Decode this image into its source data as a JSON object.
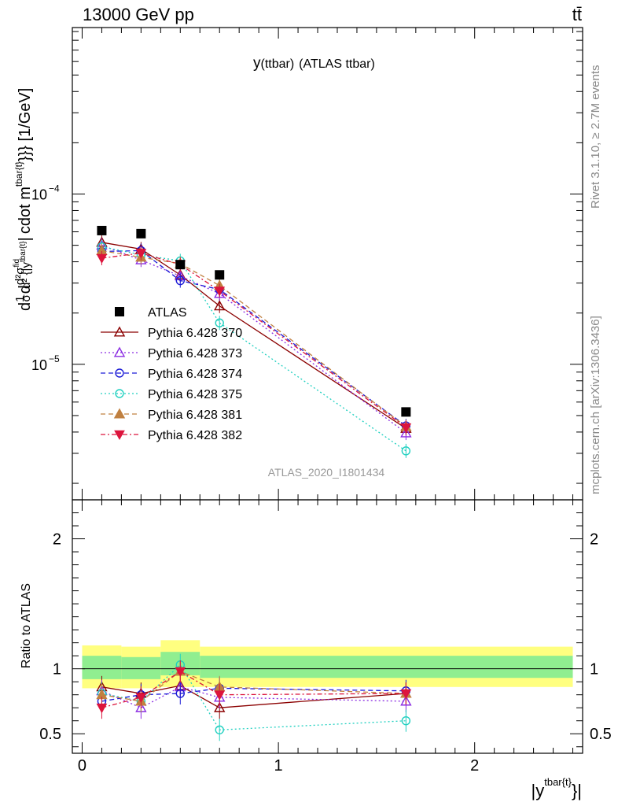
{
  "header": {
    "energy_label": "13000 GeV pp",
    "process_label": "tt̄"
  },
  "side_labels": {
    "rivet": "Rivet 3.1.10, ≥ 2.7M events",
    "mcplots": "mcplots.cern.ch [arXiv:1306.3436]"
  },
  "chart_data": [
    {
      "type": "scatter",
      "panel": "main",
      "title": "y(ttbar) (ATLAS ttbar)",
      "title_main": "y",
      "title_sub": "(ttbar)",
      "title_rest": "(ATLAS ttbar)",
      "watermark": "ATLAS_2020_I1801434",
      "ylabel": "d1/σdd²σfid/d²{|ytbar{t}|cdot mtbar{t}}}} [1/GeV]",
      "ylabel_parts": {
        "d1": "d",
        "frac1_num": "1",
        "frac1_den": "σ",
        "d2": "d",
        "frac2_num": "d²σ",
        "frac2_num_sup": "fid",
        "frac2_den": "d² {|y",
        "frac2_den_sup": "tbar{t}",
        "bar": "|",
        "rest": "cdot m",
        "rest_sup": "tbar{t}",
        "tail": "}}} [1/GeV]"
      },
      "yscale": "log",
      "ylim": [
        1.6e-06,
        0.00095
      ],
      "xlim": [
        -0.05,
        2.55
      ],
      "y_tick_labels": [
        "10⁻⁵",
        "10⁻⁴"
      ],
      "y_tick_label_parts": [
        {
          "base": "10",
          "exp": "−5"
        },
        {
          "base": "10",
          "exp": "−4"
        }
      ],
      "y_tick_values": [
        1e-05,
        0.0001
      ],
      "legend_position": "lower-left",
      "x": [
        0.1,
        0.3,
        0.5,
        0.7,
        1.65
      ],
      "series": [
        {
          "name": "ATLAS",
          "color": "#000000",
          "marker": "filled-square",
          "line": "none",
          "values": [
            6.1e-05,
            5.85e-05,
            3.85e-05,
            3.35e-05,
            5.25e-06
          ]
        },
        {
          "name": "Pythia 6.428 370",
          "color": "#8b0000",
          "marker": "open-triangle-up",
          "line": "solid",
          "values": [
            5.2e-05,
            4.75e-05,
            3.35e-05,
            2.2e-05,
            4.2e-06
          ]
        },
        {
          "name": "Pythia 6.428 373",
          "color": "#8a2be2",
          "marker": "open-triangle-up",
          "line": "dotted",
          "values": [
            5e-05,
            4.1e-05,
            3.3e-05,
            2.6e-05,
            3.95e-06
          ]
        },
        {
          "name": "Pythia 6.428 374",
          "color": "#1a1ad6",
          "marker": "open-circle",
          "line": "dashed",
          "values": [
            4.6e-05,
            4.65e-05,
            3.1e-05,
            2.75e-05,
            4.35e-06
          ]
        },
        {
          "name": "Pythia 6.428 375",
          "color": "#20d0c0",
          "marker": "open-circle",
          "line": "dotted",
          "values": [
            4.9e-05,
            4.4e-05,
            4.05e-05,
            1.75e-05,
            3.1e-06
          ]
        },
        {
          "name": "Pythia 6.428 381",
          "color": "#c08040",
          "marker": "filled-triangle-up",
          "line": "dashed",
          "values": [
            4.65e-05,
            4.25e-05,
            3.9e-05,
            2.9e-05,
            4.3e-06
          ]
        },
        {
          "name": "Pythia 6.428 382",
          "color": "#dc143c",
          "marker": "filled-triangle-down",
          "line": "dashdot",
          "values": [
            4.2e-05,
            4.5e-05,
            3.85e-05,
            2.7e-05,
            4.25e-06
          ]
        }
      ]
    },
    {
      "type": "scatter",
      "panel": "ratio",
      "ylabel": "Ratio to ATLAS",
      "xlabel": "|ytbar{t}}|",
      "xlabel_parts": {
        "bar": "|y",
        "sup": "tbar{t}",
        "tail": "}|"
      },
      "ylim": [
        0.35,
        2.3
      ],
      "xlim": [
        -0.05,
        2.55
      ],
      "x_tick_labels": [
        "0",
        "1",
        "2"
      ],
      "x_tick_values": [
        0,
        1,
        2
      ],
      "y_tick_labels": [
        "0.5",
        "1",
        "2"
      ],
      "y_tick_values": [
        0.5,
        1,
        2
      ],
      "reference_line": 1,
      "x": [
        0.1,
        0.3,
        0.5,
        0.7,
        1.65
      ],
      "bin_edges": [
        0,
        0.2,
        0.4,
        0.6,
        2.5
      ],
      "uncertainty_bands": {
        "inner_color": "#90ee90",
        "outer_color": "#ffff80",
        "inner": [
          [
            0.92,
            1.1
          ],
          [
            0.92,
            1.09
          ],
          [
            0.95,
            1.13
          ],
          [
            0.93,
            1.1
          ],
          [
            0.93,
            1.09
          ]
        ],
        "outer": [
          [
            0.85,
            1.18
          ],
          [
            0.85,
            1.17
          ],
          [
            0.86,
            1.22
          ],
          [
            0.86,
            1.17
          ],
          [
            0.85,
            1.18
          ]
        ]
      },
      "series": [
        {
          "name": "Pythia 6.428 370",
          "color": "#8b0000",
          "marker": "open-triangle-up",
          "line": "solid",
          "values": [
            0.86,
            0.81,
            0.87,
            0.7,
            0.81
          ]
        },
        {
          "name": "Pythia 6.428 373",
          "color": "#8a2be2",
          "marker": "open-triangle-up",
          "line": "dotted",
          "values": [
            0.83,
            0.7,
            0.86,
            0.78,
            0.75
          ]
        },
        {
          "name": "Pythia 6.428 374",
          "color": "#1a1ad6",
          "marker": "open-circle",
          "line": "dashed",
          "values": [
            0.75,
            0.8,
            0.81,
            0.85,
            0.83
          ]
        },
        {
          "name": "Pythia 6.428 375",
          "color": "#20d0c0",
          "marker": "open-circle",
          "line": "dotted",
          "values": [
            0.81,
            0.75,
            1.03,
            0.53,
            0.6
          ]
        },
        {
          "name": "Pythia 6.428 381",
          "color": "#c08040",
          "marker": "filled-triangle-up",
          "line": "dashed",
          "values": [
            0.8,
            0.75,
            0.98,
            0.86,
            0.81
          ]
        },
        {
          "name": "Pythia 6.428 382",
          "color": "#dc143c",
          "marker": "filled-triangle-down",
          "line": "dashdot",
          "values": [
            0.7,
            0.78,
            0.98,
            0.8,
            0.81
          ]
        }
      ]
    }
  ]
}
